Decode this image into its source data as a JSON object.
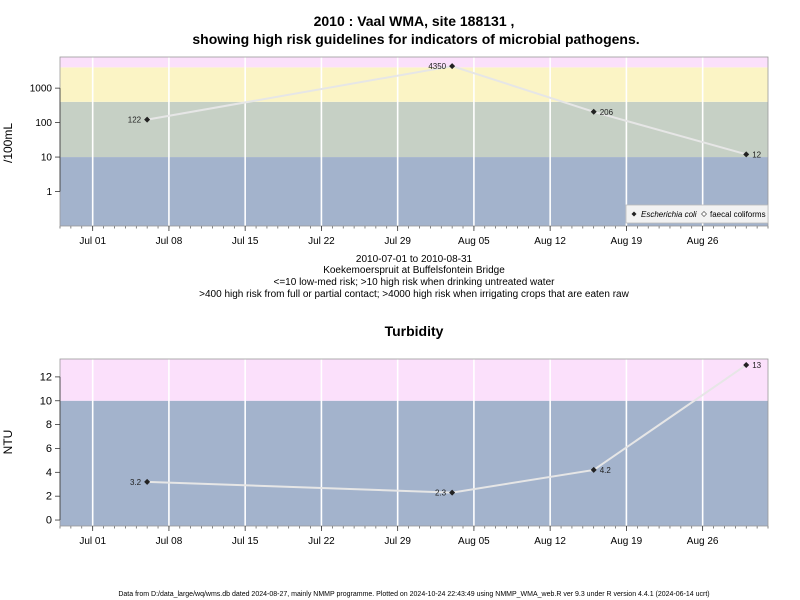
{
  "colors": {
    "band_low": "#a3b3cc",
    "band_mid": "#c6d0c5",
    "band_high": "#fbf4c5",
    "band_top": "#fbe0fb",
    "plot_line": "#e6e6e6",
    "point": "#222222"
  },
  "chart1": {
    "title_line1": "2010 : Vaal WMA, site 188131 ,",
    "title_line2": "showing high risk guidelines for indicators of microbial pathogens.",
    "ylabel": "/100mL",
    "y_ticks": [
      "1",
      "10",
      "100",
      "1000"
    ],
    "x_ticks": [
      "Jul 01",
      "Jul 08",
      "Jul 15",
      "Jul 22",
      "Jul 29",
      "Aug 05",
      "Aug 12",
      "Aug 19",
      "Aug 26"
    ],
    "caption_lines": [
      "2010-07-01 to 2010-08-31",
      "Koekemoerspruit at Buffelsfontein Bridge",
      "<=10 low-med risk; >10 high risk when drinking untreated water",
      ">400 high risk from full or partial contact; >4000 high risk when irrigating crops that are eaten raw"
    ],
    "legend": {
      "ecoli": "Escherichia coli",
      "faecal": "faecal coliforms"
    },
    "point_labels": [
      "122",
      "4350",
      "206",
      "12"
    ]
  },
  "chart2": {
    "title": "Turbidity",
    "ylabel": "NTU",
    "y_ticks": [
      "0",
      "2",
      "4",
      "6",
      "8",
      "10",
      "12"
    ],
    "x_ticks": [
      "Jul 01",
      "Jul 08",
      "Jul 15",
      "Jul 22",
      "Jul 29",
      "Aug 05",
      "Aug 12",
      "Aug 19",
      "Aug 26"
    ],
    "point_labels": [
      "3.2",
      "2.3",
      "4.2",
      "13"
    ]
  },
  "footer": "Data from D:/data_large/wq/wms.db dated 2024-08-27, mainly NMMP programme. Plotted on 2024-10-24 22:43:49 using NMMP_WMA_web.R ver 9.3 under R version 4.4.1 (2024-06-14 ucrt)",
  "chart_data": [
    {
      "type": "line",
      "title": "2010 : Vaal WMA, site 188131 , showing high risk guidelines for indicators of microbial pathogens.",
      "xlabel": "",
      "ylabel": "/100mL",
      "y_scale": "log",
      "x_ticks": [
        "Jul 01",
        "Jul 08",
        "Jul 15",
        "Jul 22",
        "Jul 29",
        "Aug 05",
        "Aug 12",
        "Aug 19",
        "Aug 26"
      ],
      "xlim": [
        "2010-06-28",
        "2010-09-01"
      ],
      "ylim": [
        0.1,
        8000
      ],
      "guideline_bands": [
        10,
        400,
        4000
      ],
      "series": [
        {
          "name": "Escherichia coli",
          "x": [
            "2010-07-06",
            "2010-08-03",
            "2010-08-16",
            "2010-08-30"
          ],
          "y": [
            122,
            4350,
            206,
            12
          ]
        }
      ],
      "legend_position": "bottom-right",
      "grid": true
    },
    {
      "type": "line",
      "title": "Turbidity",
      "xlabel": "",
      "ylabel": "NTU",
      "x_ticks": [
        "Jul 01",
        "Jul 08",
        "Jul 15",
        "Jul 22",
        "Jul 29",
        "Aug 05",
        "Aug 12",
        "Aug 19",
        "Aug 26"
      ],
      "xlim": [
        "2010-06-28",
        "2010-09-01"
      ],
      "ylim": [
        -0.5,
        13.5
      ],
      "guideline_bands": [
        10
      ],
      "series": [
        {
          "name": "",
          "x": [
            "2010-07-06",
            "2010-08-03",
            "2010-08-16",
            "2010-08-30"
          ],
          "y": [
            3.2,
            2.3,
            4.2,
            13
          ]
        }
      ],
      "grid": true
    }
  ]
}
